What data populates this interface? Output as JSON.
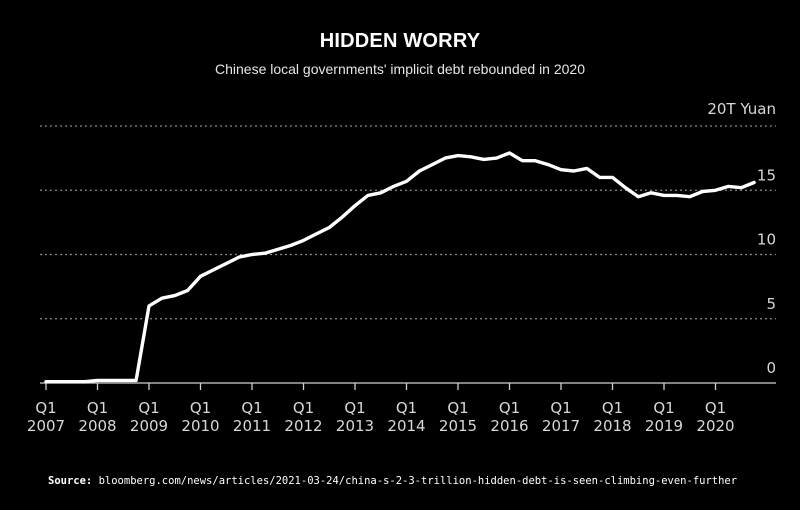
{
  "chart_data": {
    "type": "line",
    "title": "HIDDEN WORRY",
    "subtitle": "Chinese local governments' implicit debt rebounded in 2020",
    "y_unit_label": "20T Yuan",
    "yticks": [
      0,
      5,
      10,
      15,
      20
    ],
    "ytick_labels": [
      "0",
      "5",
      "10",
      "15",
      ""
    ],
    "ylim": [
      0,
      20
    ],
    "grid": "horizontal dotted",
    "xlim": [
      "2007-Q1",
      "2020-Q4"
    ],
    "xtick_labels": [
      {
        "q": "Q1",
        "year": "2007"
      },
      {
        "q": "Q1",
        "year": "2008"
      },
      {
        "q": "Q1",
        "year": "2009"
      },
      {
        "q": "Q1",
        "year": "2010"
      },
      {
        "q": "Q1",
        "year": "2011"
      },
      {
        "q": "Q1",
        "year": "2012"
      },
      {
        "q": "Q1",
        "year": "2013"
      },
      {
        "q": "Q1",
        "year": "2014"
      },
      {
        "q": "Q1",
        "year": "2015"
      },
      {
        "q": "Q1",
        "year": "2016"
      },
      {
        "q": "Q1",
        "year": "2017"
      },
      {
        "q": "Q1",
        "year": "2018"
      },
      {
        "q": "Q1",
        "year": "2019"
      },
      {
        "q": "Q1",
        "year": "2020"
      }
    ],
    "x": [
      "2007-Q1",
      "2007-Q2",
      "2007-Q3",
      "2007-Q4",
      "2008-Q1",
      "2008-Q2",
      "2008-Q3",
      "2008-Q4",
      "2009-Q1",
      "2009-Q2",
      "2009-Q3",
      "2009-Q4",
      "2010-Q1",
      "2010-Q2",
      "2010-Q3",
      "2010-Q4",
      "2011-Q1",
      "2011-Q2",
      "2011-Q3",
      "2011-Q4",
      "2012-Q1",
      "2012-Q2",
      "2012-Q3",
      "2012-Q4",
      "2013-Q1",
      "2013-Q2",
      "2013-Q3",
      "2013-Q4",
      "2014-Q1",
      "2014-Q2",
      "2014-Q3",
      "2014-Q4",
      "2015-Q1",
      "2015-Q2",
      "2015-Q3",
      "2015-Q4",
      "2016-Q1",
      "2016-Q2",
      "2016-Q3",
      "2016-Q4",
      "2017-Q1",
      "2017-Q2",
      "2017-Q3",
      "2017-Q4",
      "2018-Q1",
      "2018-Q2",
      "2018-Q3",
      "2018-Q4",
      "2019-Q1",
      "2019-Q2",
      "2019-Q3",
      "2019-Q4",
      "2020-Q1",
      "2020-Q2",
      "2020-Q3",
      "2020-Q4"
    ],
    "series": [
      {
        "values": [
          0.1,
          0.1,
          0.1,
          0.1,
          0.2,
          0.2,
          0.2,
          0.2,
          6.0,
          6.6,
          6.8,
          7.2,
          8.3,
          8.8,
          9.3,
          9.8,
          10.0,
          10.1,
          10.4,
          10.7,
          11.1,
          11.6,
          12.1,
          12.9,
          13.8,
          14.6,
          14.8,
          15.3,
          15.7,
          16.5,
          17.0,
          17.5,
          17.7,
          17.6,
          17.4,
          17.5,
          17.9,
          17.3,
          17.3,
          17.0,
          16.6,
          16.5,
          16.7,
          16.0,
          16.0,
          15.2,
          14.5,
          14.8,
          14.6,
          14.6,
          14.5,
          14.9,
          15.0,
          15.3,
          15.2,
          15.6
        ],
        "color": "#ffffff"
      }
    ]
  },
  "source": {
    "label": "Source:",
    "text": "bloomberg.com/news/articles/2021-03-24/china-s-2-3-trillion-hidden-debt-is-seen-climbing-even-further"
  }
}
